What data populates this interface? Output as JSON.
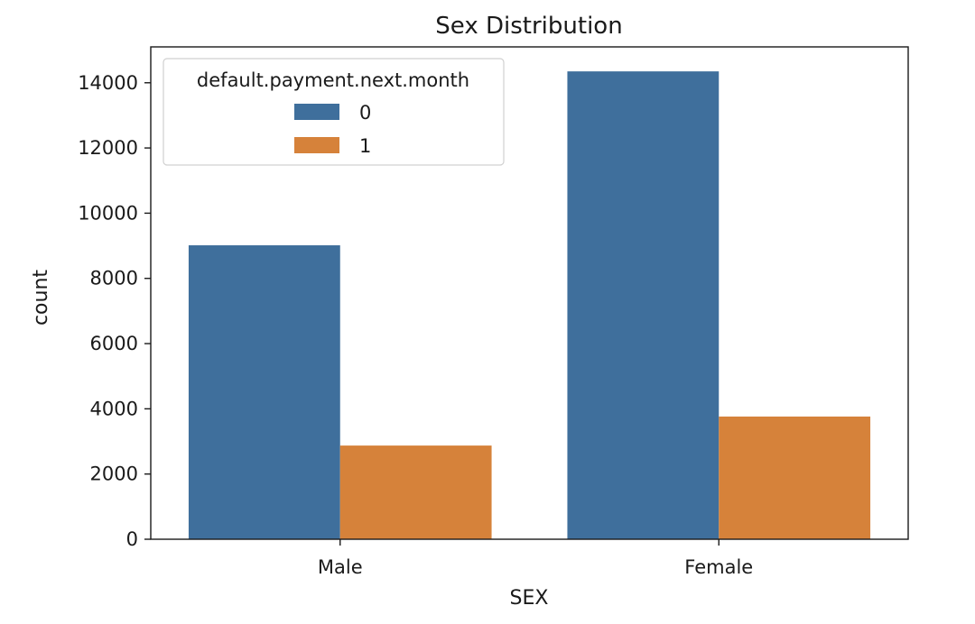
{
  "chart_data": {
    "type": "bar",
    "title": "Sex Distribution",
    "xlabel": "SEX",
    "ylabel": "count",
    "categories": [
      "Male",
      "Female"
    ],
    "series": [
      {
        "name": "0",
        "values": [
          9015,
          14349
        ],
        "color": "#3f6f9c"
      },
      {
        "name": "1",
        "values": [
          2873,
          3763
        ],
        "color": "#d6823a"
      }
    ],
    "ylim": [
      0,
      15100
    ],
    "yticks": [
      0,
      2000,
      4000,
      6000,
      8000,
      10000,
      12000,
      14000
    ],
    "grid": false,
    "legend": {
      "title": "default.payment.next.month",
      "placement": "top-left"
    }
  }
}
